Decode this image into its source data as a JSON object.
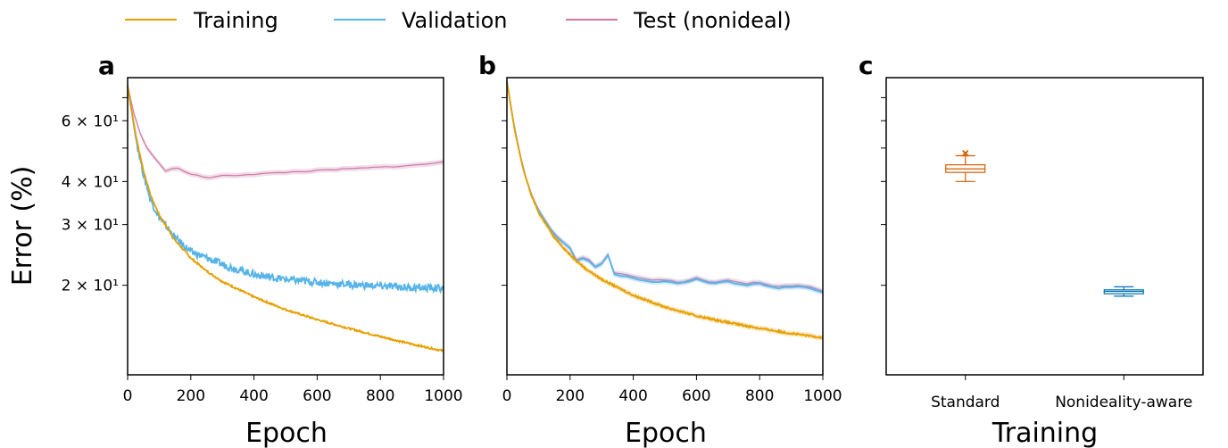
{
  "legend": [
    {
      "label": "Training",
      "color": "#E69F00"
    },
    {
      "label": "Validation",
      "color": "#56B4E9"
    },
    {
      "label": "Test (nonideal)",
      "color": "#CC79A7"
    }
  ],
  "y_axis": {
    "label": "Error (%)",
    "scale": "log",
    "range": [
      11,
      80
    ],
    "ticks": [
      {
        "value": 20,
        "label": "2 × 10¹"
      },
      {
        "value": 30,
        "label": "3 × 10¹"
      },
      {
        "value": 40,
        "label": "4 × 10¹"
      },
      {
        "value": 60,
        "label": "6 × 10¹"
      }
    ]
  },
  "chart_data": [
    {
      "panel": "a",
      "type": "line",
      "xlabel": "Epoch",
      "ylabel": "Error (%)",
      "xlim": [
        0,
        1000
      ],
      "xticks": [
        "0",
        "200",
        "400",
        "600",
        "800",
        "1000"
      ],
      "yscale": "log",
      "series": [
        {
          "name": "Training",
          "color": "#E69F00",
          "x": [
            0,
            25,
            50,
            75,
            100,
            150,
            200,
            250,
            300,
            400,
            500,
            600,
            700,
            800,
            900,
            1000
          ],
          "y": [
            76,
            55,
            43,
            36,
            32,
            27,
            24,
            22,
            20.5,
            18.5,
            17,
            15.9,
            15,
            14.2,
            13.5,
            12.9
          ]
        },
        {
          "name": "Validation",
          "color": "#56B4E9",
          "x": [
            0,
            25,
            50,
            75,
            100,
            150,
            200,
            250,
            300,
            400,
            500,
            600,
            700,
            800,
            900,
            1000
          ],
          "y": [
            76,
            54,
            42,
            35,
            31.5,
            27.5,
            25,
            24,
            23,
            21.5,
            20.8,
            20.4,
            20.1,
            19.9,
            19.7,
            19.6
          ]
        },
        {
          "name": "Test (nonideal)",
          "color": "#CC79A7",
          "x": [
            0,
            25,
            50,
            75,
            100,
            120,
            150,
            200,
            250,
            300,
            400,
            500,
            600,
            700,
            800,
            900,
            1000
          ],
          "y": [
            76,
            60,
            52,
            48,
            45,
            43,
            44,
            42,
            41,
            41.5,
            42,
            42.5,
            43,
            43.5,
            44,
            44.5,
            45.5
          ]
        }
      ]
    },
    {
      "panel": "b",
      "type": "line",
      "xlabel": "Epoch",
      "xlim": [
        0,
        1000
      ],
      "xticks": [
        "0",
        "200",
        "400",
        "600",
        "800",
        "1000"
      ],
      "yscale": "log",
      "series": [
        {
          "name": "Training",
          "color": "#E69F00",
          "x": [
            0,
            25,
            50,
            75,
            100,
            150,
            200,
            250,
            300,
            400,
            500,
            600,
            700,
            800,
            900,
            1000
          ],
          "y": [
            78,
            56,
            44,
            37,
            32.5,
            27.5,
            24.5,
            22.3,
            20.8,
            18.7,
            17.3,
            16.3,
            15.6,
            15,
            14.5,
            14.1
          ]
        },
        {
          "name": "Validation",
          "color": "#56B4E9",
          "x": [
            0,
            25,
            50,
            75,
            100,
            150,
            200,
            220,
            250,
            280,
            300,
            320,
            340,
            400,
            450,
            500,
            550,
            600,
            650,
            700,
            750,
            800,
            850,
            900,
            950,
            1000
          ],
          "y": [
            78,
            56,
            44,
            37,
            33,
            28,
            25.5,
            23.5,
            24,
            22.5,
            23,
            24.5,
            21.5,
            21,
            20.5,
            20.5,
            20.2,
            20.8,
            20.2,
            20.5,
            20,
            20.2,
            19.6,
            19.8,
            19.7,
            19
          ]
        },
        {
          "name": "Test (nonideal)",
          "color": "#CC79A7",
          "x": [
            0,
            25,
            50,
            75,
            100,
            150,
            200,
            220,
            250,
            280,
            300,
            320,
            340,
            400,
            450,
            500,
            550,
            600,
            650,
            700,
            750,
            800,
            850,
            900,
            950,
            1000
          ],
          "y": [
            78,
            56,
            44,
            37,
            33,
            28.2,
            25.7,
            23.7,
            24.2,
            22.7,
            23.2,
            24.6,
            21.7,
            21.2,
            20.7,
            20.7,
            20.4,
            21,
            20.4,
            20.7,
            20.2,
            20.4,
            19.8,
            20,
            19.9,
            19.2
          ]
        }
      ]
    },
    {
      "panel": "c",
      "type": "box",
      "xlabel": "Training",
      "categories": [
        "Standard",
        "Nonideality-aware"
      ],
      "boxes": [
        {
          "category": "Standard",
          "color": "#D55E00",
          "whisker_low": 40,
          "q1": 42.5,
          "median": 43.5,
          "q3": 44.7,
          "whisker_high": 47.5,
          "outliers": [
            48.1,
            48.4
          ]
        },
        {
          "category": "Nonideality-aware",
          "color": "#0072B2",
          "whisker_low": 18.6,
          "q1": 18.9,
          "median": 19.2,
          "q3": 19.4,
          "whisker_high": 19.8,
          "outliers": []
        }
      ]
    }
  ]
}
